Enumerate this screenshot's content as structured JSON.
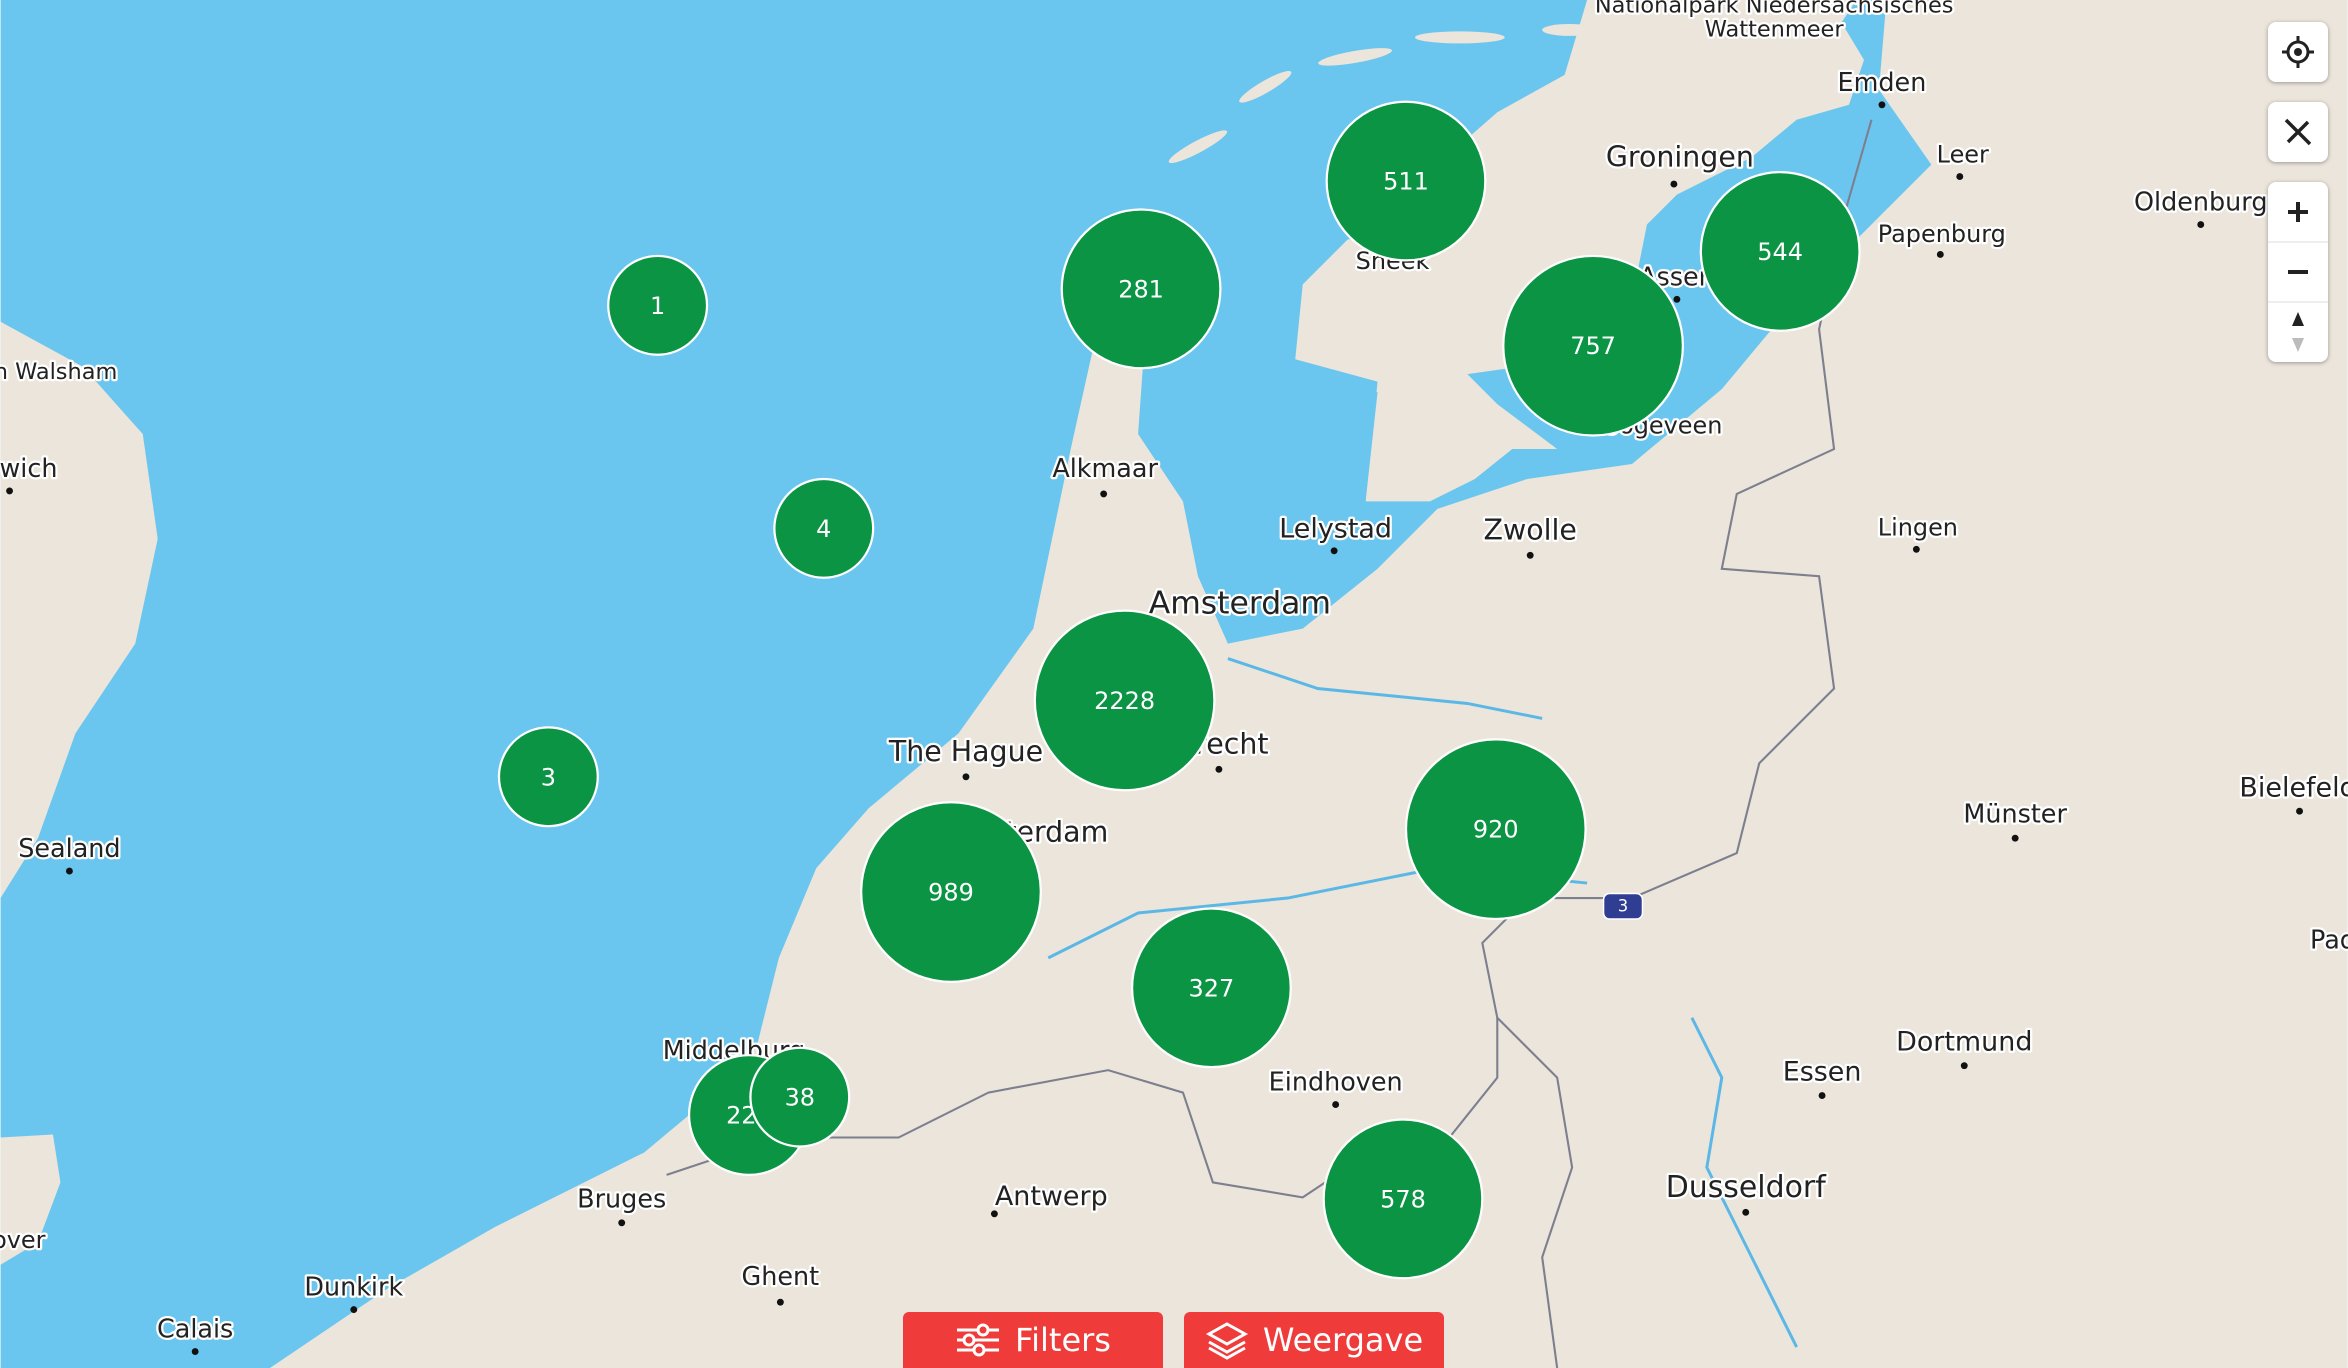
{
  "map": {
    "places": [
      "Nationalpark Niedersächsisches",
      "Wattenmeer",
      "Emden",
      "Groningen",
      "Leer",
      "Oldenburg",
      "Papenburg",
      "Sneek",
      "Assen",
      "Hoogeveen",
      "Alkmaar",
      "Lelystad",
      "Zwolle",
      "Lingen",
      "Amsterdam",
      "The Hague",
      "Utrecht",
      "Rotterdam",
      "Münster",
      "Bielefeld",
      "Middelburg",
      "Eindhoven",
      "Essen",
      "Dortmund",
      "Bruges",
      "Antwerp",
      "Dusseldorf",
      "Ghent",
      "Dunkirk",
      "Calais",
      "Sealand",
      "Harwich",
      "North Walsham",
      "Paderborn",
      "Dover"
    ],
    "clusters": [
      1,
      4,
      3,
      281,
      511,
      757,
      544,
      2228,
      989,
      920,
      327,
      224,
      38,
      578
    ],
    "road_shield": "3"
  },
  "toolbar": {
    "filters": "Filters",
    "view": "Weergave"
  }
}
